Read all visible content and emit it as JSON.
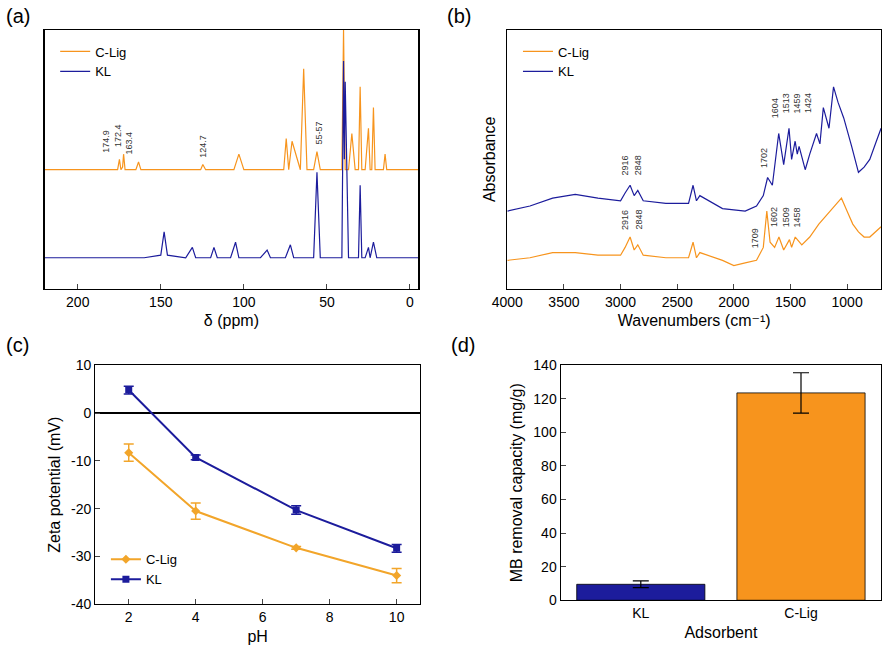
{
  "chart_data": [
    {
      "type": "line",
      "title": "(a)",
      "xlabel": "δ (ppm)",
      "tick_labels": "x",
      "legend": "upper left",
      "grid": false,
      "xlim": [
        220,
        -5
      ],
      "xticks": [
        200,
        150,
        100,
        50,
        0
      ],
      "ylim": [
        0,
        1
      ],
      "series": [
        {
          "name": "C-Lig",
          "color": "#f7941d",
          "x": [
            220,
            200,
            180,
            176,
            174.9,
            174,
            173,
            172.4,
            171.5,
            165,
            163.4,
            162,
            130,
            126,
            124.7,
            123,
            106,
            103,
            100,
            80,
            76,
            74.5,
            73,
            71,
            66,
            64,
            62,
            58,
            56,
            54,
            44,
            41,
            40,
            39,
            37,
            35,
            33,
            31,
            30,
            29,
            27,
            25,
            24,
            23,
            22,
            21,
            18,
            16,
            15,
            14,
            10,
            0,
            -5
          ],
          "values": [
            0.46,
            0.46,
            0.46,
            0.46,
            0.5,
            0.46,
            0.47,
            0.52,
            0.46,
            0.46,
            0.49,
            0.46,
            0.46,
            0.46,
            0.48,
            0.46,
            0.46,
            0.52,
            0.46,
            0.46,
            0.46,
            0.58,
            0.46,
            0.57,
            0.46,
            0.85,
            0.46,
            0.46,
            0.53,
            0.46,
            0.46,
            0.46,
            1.0,
            0.46,
            0.46,
            0.6,
            0.46,
            0.46,
            0.78,
            0.46,
            0.46,
            0.62,
            0.46,
            0.46,
            0.7,
            0.46,
            0.46,
            0.46,
            0.52,
            0.46,
            0.46,
            0.46,
            0.46
          ]
        },
        {
          "name": "KL",
          "color": "#1c1c9c",
          "x": [
            220,
            200,
            160,
            150,
            148,
            146,
            135,
            131,
            129,
            120,
            118,
            116,
            108,
            105,
            103,
            90,
            86,
            84,
            75,
            72,
            70,
            60,
            58,
            56,
            54,
            44,
            41,
            40,
            39.5,
            39,
            37,
            33,
            31,
            30,
            29,
            27,
            25,
            24,
            22,
            20,
            18,
            10,
            0,
            -5
          ],
          "values": [
            0.12,
            0.12,
            0.12,
            0.13,
            0.22,
            0.13,
            0.12,
            0.16,
            0.12,
            0.12,
            0.16,
            0.12,
            0.12,
            0.18,
            0.12,
            0.12,
            0.15,
            0.12,
            0.12,
            0.17,
            0.12,
            0.12,
            0.12,
            0.45,
            0.12,
            0.12,
            0.12,
            0.88,
            0.5,
            0.8,
            0.12,
            0.12,
            0.12,
            0.4,
            0.12,
            0.12,
            0.16,
            0.12,
            0.18,
            0.12,
            0.12,
            0.12,
            0.12,
            0.12
          ]
        }
      ],
      "annotations": [
        {
          "text": "174.9",
          "x": 183,
          "y": 0.52
        },
        {
          "text": "172.4",
          "x": 176,
          "y": 0.54
        },
        {
          "text": "163.4",
          "x": 169,
          "y": 0.51
        },
        {
          "text": "124.7",
          "x": 124.7,
          "y": 0.5
        },
        {
          "text": "55-57",
          "x": 55,
          "y": 0.55
        }
      ]
    },
    {
      "type": "line",
      "title": "(b)",
      "xlabel": "Wavenumbers (cm⁻¹)",
      "ylabel": "Absorbance",
      "tick_labels": "x",
      "legend": "upper left",
      "grid": false,
      "xlim": [
        4000,
        700
      ],
      "xticks": [
        4000,
        3500,
        3000,
        2500,
        2000,
        1500,
        1000
      ],
      "ylim": [
        0,
        1
      ],
      "series": [
        {
          "name": "C-Lig",
          "color": "#f7941d",
          "x": [
            4000,
            3800,
            3600,
            3400,
            3200,
            3000,
            2960,
            2916,
            2880,
            2848,
            2800,
            2600,
            2400,
            2360,
            2330,
            2300,
            2100,
            2000,
            1900,
            1800,
            1740,
            1709,
            1680,
            1640,
            1602,
            1560,
            1509,
            1490,
            1458,
            1400,
            1330,
            1250,
            1150,
            1050,
            1000,
            950,
            900,
            850,
            800,
            750,
            700
          ],
          "values": [
            0.11,
            0.12,
            0.14,
            0.14,
            0.13,
            0.13,
            0.16,
            0.2,
            0.15,
            0.17,
            0.13,
            0.12,
            0.12,
            0.18,
            0.12,
            0.14,
            0.11,
            0.09,
            0.1,
            0.11,
            0.16,
            0.3,
            0.18,
            0.16,
            0.2,
            0.15,
            0.19,
            0.16,
            0.2,
            0.17,
            0.2,
            0.25,
            0.3,
            0.35,
            0.3,
            0.25,
            0.22,
            0.2,
            0.2,
            0.22,
            0.24
          ]
        },
        {
          "name": "KL",
          "color": "#1c1c9c",
          "x": [
            4000,
            3800,
            3600,
            3400,
            3200,
            3000,
            2960,
            2916,
            2880,
            2848,
            2800,
            2600,
            2400,
            2360,
            2330,
            2300,
            2100,
            1900,
            1800,
            1740,
            1702,
            1660,
            1604,
            1560,
            1513,
            1490,
            1459,
            1440,
            1424,
            1370,
            1330,
            1270,
            1240,
            1210,
            1160,
            1120,
            1080,
            1030,
            960,
            900,
            850,
            800,
            750,
            700
          ],
          "values": [
            0.3,
            0.32,
            0.35,
            0.365,
            0.35,
            0.34,
            0.37,
            0.4,
            0.36,
            0.38,
            0.34,
            0.33,
            0.33,
            0.4,
            0.34,
            0.36,
            0.31,
            0.3,
            0.32,
            0.36,
            0.43,
            0.4,
            0.6,
            0.48,
            0.62,
            0.5,
            0.57,
            0.52,
            0.55,
            0.46,
            0.52,
            0.6,
            0.56,
            0.7,
            0.62,
            0.78,
            0.72,
            0.66,
            0.55,
            0.45,
            0.47,
            0.5,
            0.56,
            0.62
          ]
        }
      ],
      "annotations": [
        {
          "text": "2916",
          "x": 2960,
          "y": 0.43
        },
        {
          "text": "2848",
          "x": 2840,
          "y": 0.43
        },
        {
          "text": "1702",
          "x": 1740,
          "y": 0.46
        },
        {
          "text": "1604",
          "x": 1640,
          "y": 0.65
        },
        {
          "text": "1513",
          "x": 1540,
          "y": 0.67
        },
        {
          "text": "1459",
          "x": 1440,
          "y": 0.67
        },
        {
          "text": "1424",
          "x": 1340,
          "y": 0.67
        },
        {
          "text": "2916",
          "x": 2960,
          "y": 0.22
        },
        {
          "text": "2848",
          "x": 2840,
          "y": 0.22
        },
        {
          "text": "1709",
          "x": 1810,
          "y": 0.15
        },
        {
          "text": "1602",
          "x": 1640,
          "y": 0.23
        },
        {
          "text": "1509",
          "x": 1540,
          "y": 0.23
        },
        {
          "text": "1458",
          "x": 1440,
          "y": 0.23
        }
      ]
    },
    {
      "type": "line",
      "title": "(c)",
      "xlabel": "pH",
      "ylabel": "Zeta potential (mV)",
      "legend": "lower left",
      "grid": false,
      "xlim": [
        1,
        10.7
      ],
      "xticks": [
        2,
        4,
        6,
        8,
        10
      ],
      "ylim": [
        -40,
        10
      ],
      "yticks": [
        -40,
        -30,
        -20,
        -10,
        0,
        10
      ],
      "x": [
        2,
        4,
        7,
        10
      ],
      "series": [
        {
          "name": "C-Lig",
          "color": "#f2a52a",
          "marker": "diamond",
          "values": [
            -8.3,
            -20.5,
            -28.2,
            -34.0
          ],
          "errors": [
            1.8,
            1.7,
            0.3,
            1.5
          ]
        },
        {
          "name": "KL",
          "color": "#1c1c9c",
          "marker": "square",
          "values": [
            4.8,
            -9.3,
            -20.3,
            -28.3
          ],
          "errors": [
            0.8,
            0.5,
            0.9,
            0.8
          ]
        }
      ]
    },
    {
      "type": "bar",
      "title": "(d)",
      "xlabel": "Adsorbent",
      "ylabel": "MB removal capacity (mg/g)",
      "grid": false,
      "categories": [
        "KL",
        "C-Lig"
      ],
      "values": [
        9.5,
        123.5
      ],
      "errors": [
        2.0,
        12.0
      ],
      "colors": [
        "#1c1c9c",
        "#f7941d"
      ],
      "ylim": [
        0,
        140
      ],
      "yticks": [
        0,
        20,
        40,
        60,
        80,
        100,
        120,
        140
      ]
    }
  ]
}
